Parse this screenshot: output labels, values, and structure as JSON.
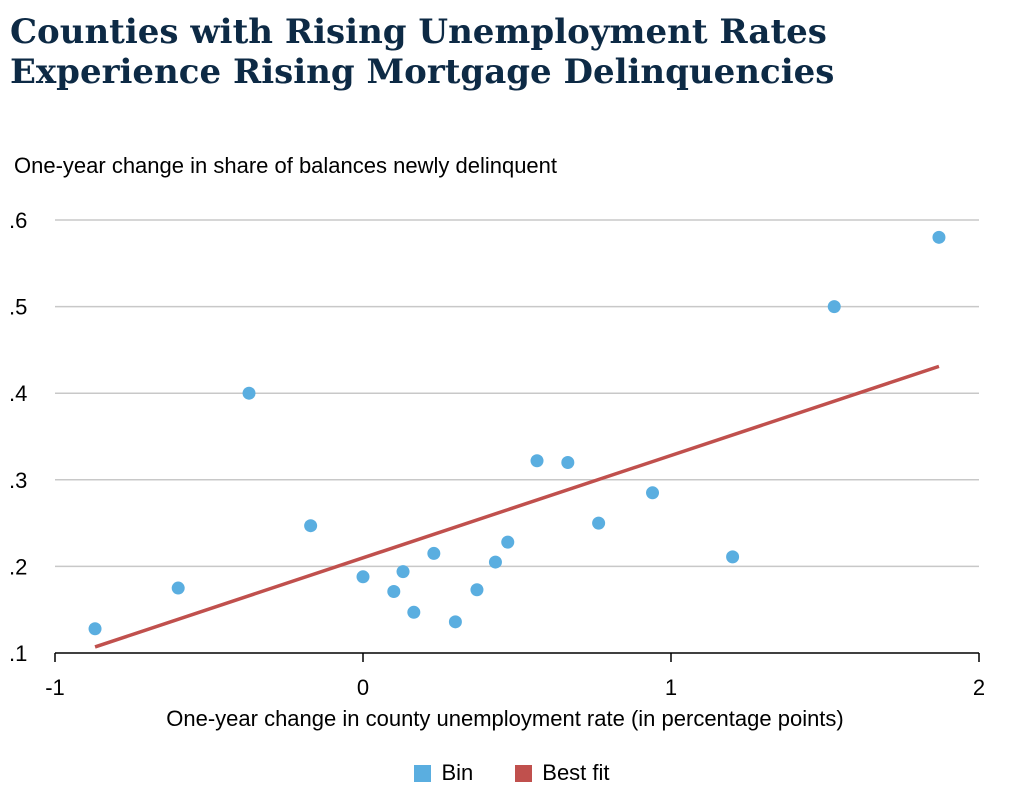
{
  "chart_data": {
    "type": "scatter",
    "title": "Counties with Rising Unemployment Rates Experience Rising Mortgage Delinquencies",
    "ylabel": "One-year change in share of balances newly delinquent",
    "xlabel": "One-year change in county unemployment rate (in percentage points)",
    "xlim": [
      -1,
      2
    ],
    "ylim": [
      0.1,
      0.6
    ],
    "x_ticks": [
      {
        "value": -1,
        "label": "-1"
      },
      {
        "value": 0,
        "label": "0"
      },
      {
        "value": 1,
        "label": "1"
      },
      {
        "value": 2,
        "label": "2"
      }
    ],
    "y_ticks": [
      {
        "value": 0.1,
        "label": ".1"
      },
      {
        "value": 0.2,
        "label": ".2"
      },
      {
        "value": 0.3,
        "label": ".3"
      },
      {
        "value": 0.4,
        "label": ".4"
      },
      {
        "value": 0.5,
        "label": ".5"
      },
      {
        "value": 0.6,
        "label": ".6"
      }
    ],
    "grid": true,
    "series": [
      {
        "name": "Bin",
        "kind": "scatter",
        "color": "#5aaee0",
        "points": [
          {
            "x": -0.87,
            "y": 0.128
          },
          {
            "x": -0.6,
            "y": 0.175
          },
          {
            "x": -0.37,
            "y": 0.4
          },
          {
            "x": -0.17,
            "y": 0.247
          },
          {
            "x": 0.0,
            "y": 0.188
          },
          {
            "x": 0.1,
            "y": 0.171
          },
          {
            "x": 0.13,
            "y": 0.194
          },
          {
            "x": 0.165,
            "y": 0.147
          },
          {
            "x": 0.23,
            "y": 0.215
          },
          {
            "x": 0.3,
            "y": 0.136
          },
          {
            "x": 0.37,
            "y": 0.173
          },
          {
            "x": 0.43,
            "y": 0.205
          },
          {
            "x": 0.47,
            "y": 0.228
          },
          {
            "x": 0.565,
            "y": 0.322
          },
          {
            "x": 0.665,
            "y": 0.32
          },
          {
            "x": 0.765,
            "y": 0.25
          },
          {
            "x": 0.94,
            "y": 0.285
          },
          {
            "x": 1.2,
            "y": 0.211
          },
          {
            "x": 1.53,
            "y": 0.5
          },
          {
            "x": 1.87,
            "y": 0.58
          }
        ]
      },
      {
        "name": "Best fit",
        "kind": "line",
        "color": "#c0504d",
        "points": [
          {
            "x": -0.87,
            "y": 0.107
          },
          {
            "x": 1.87,
            "y": 0.431
          }
        ]
      }
    ],
    "legend_position": "bottom-center"
  }
}
